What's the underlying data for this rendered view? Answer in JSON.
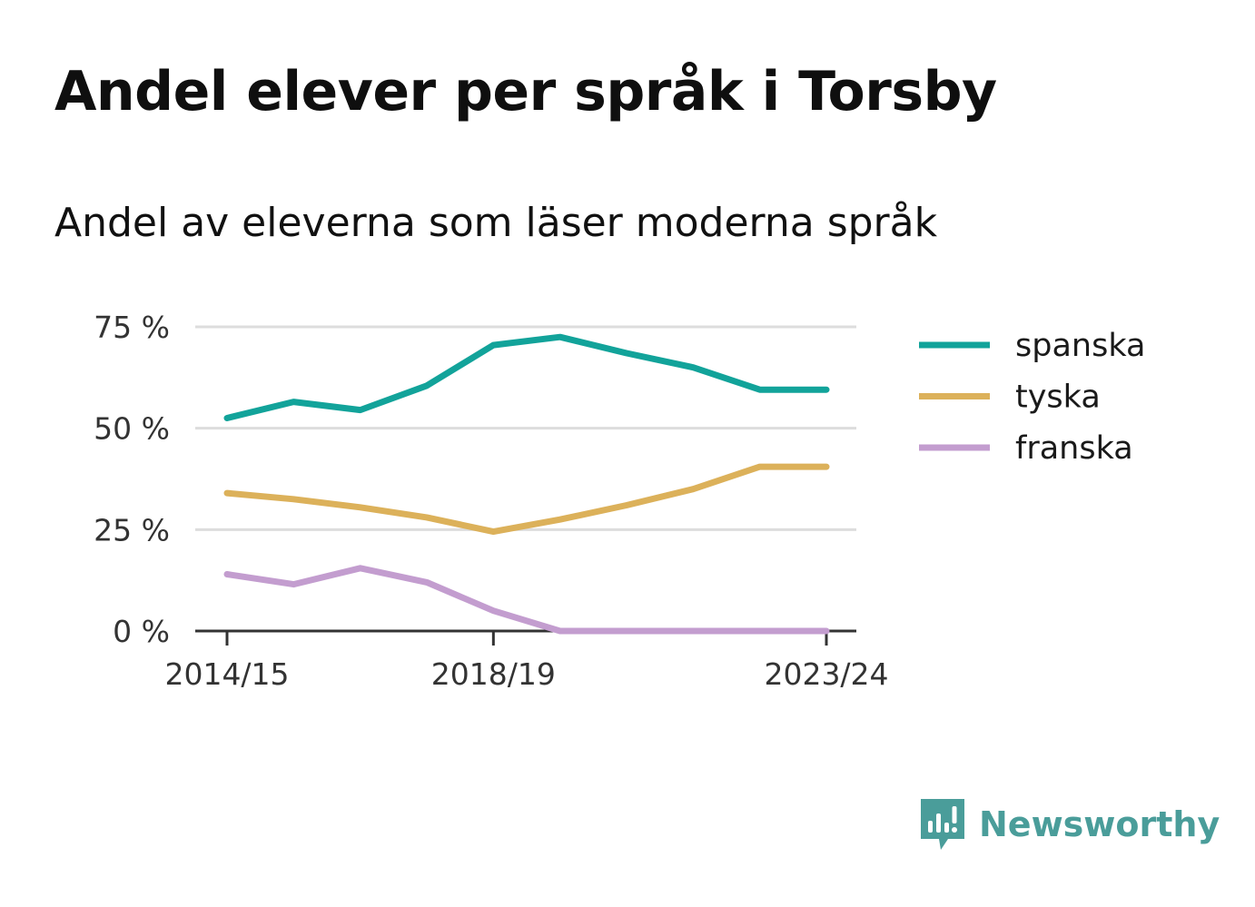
{
  "title": "Andel elever per språk i Torsby",
  "subtitle": "Andel av eleverna som läser moderna språk",
  "brand": {
    "name": "Newsworthy",
    "icon": "newsworthy-logo-icon",
    "color": "#4a9d9a"
  },
  "chart_data": {
    "type": "line",
    "x": [
      "2014/15",
      "2015/16",
      "2016/17",
      "2017/18",
      "2018/19",
      "2019/20",
      "2020/21",
      "2021/22",
      "2022/23",
      "2023/24"
    ],
    "x_tick_labels": [
      "2014/15",
      "2018/19",
      "2023/24"
    ],
    "y_tick_labels": [
      "75 %",
      "50 %",
      "25 %",
      "0 %"
    ],
    "y_ticks": [
      75,
      50,
      25,
      0
    ],
    "ylim": [
      0,
      78
    ],
    "grid": true,
    "legend_position": "right",
    "series": [
      {
        "name": "spanska",
        "color": "#12a39a",
        "values": [
          52.5,
          56.5,
          54.5,
          60.5,
          70.5,
          72.5,
          68.5,
          65,
          59.5,
          59.5
        ]
      },
      {
        "name": "tyska",
        "color": "#dcb15a",
        "values": [
          34,
          32.5,
          30.5,
          28,
          24.5,
          27.5,
          31,
          35,
          40.5,
          40.5
        ]
      },
      {
        "name": "franska",
        "color": "#c39dcf",
        "values": [
          14,
          11.5,
          15.5,
          12,
          5,
          0,
          0,
          0,
          0,
          0
        ]
      }
    ]
  }
}
